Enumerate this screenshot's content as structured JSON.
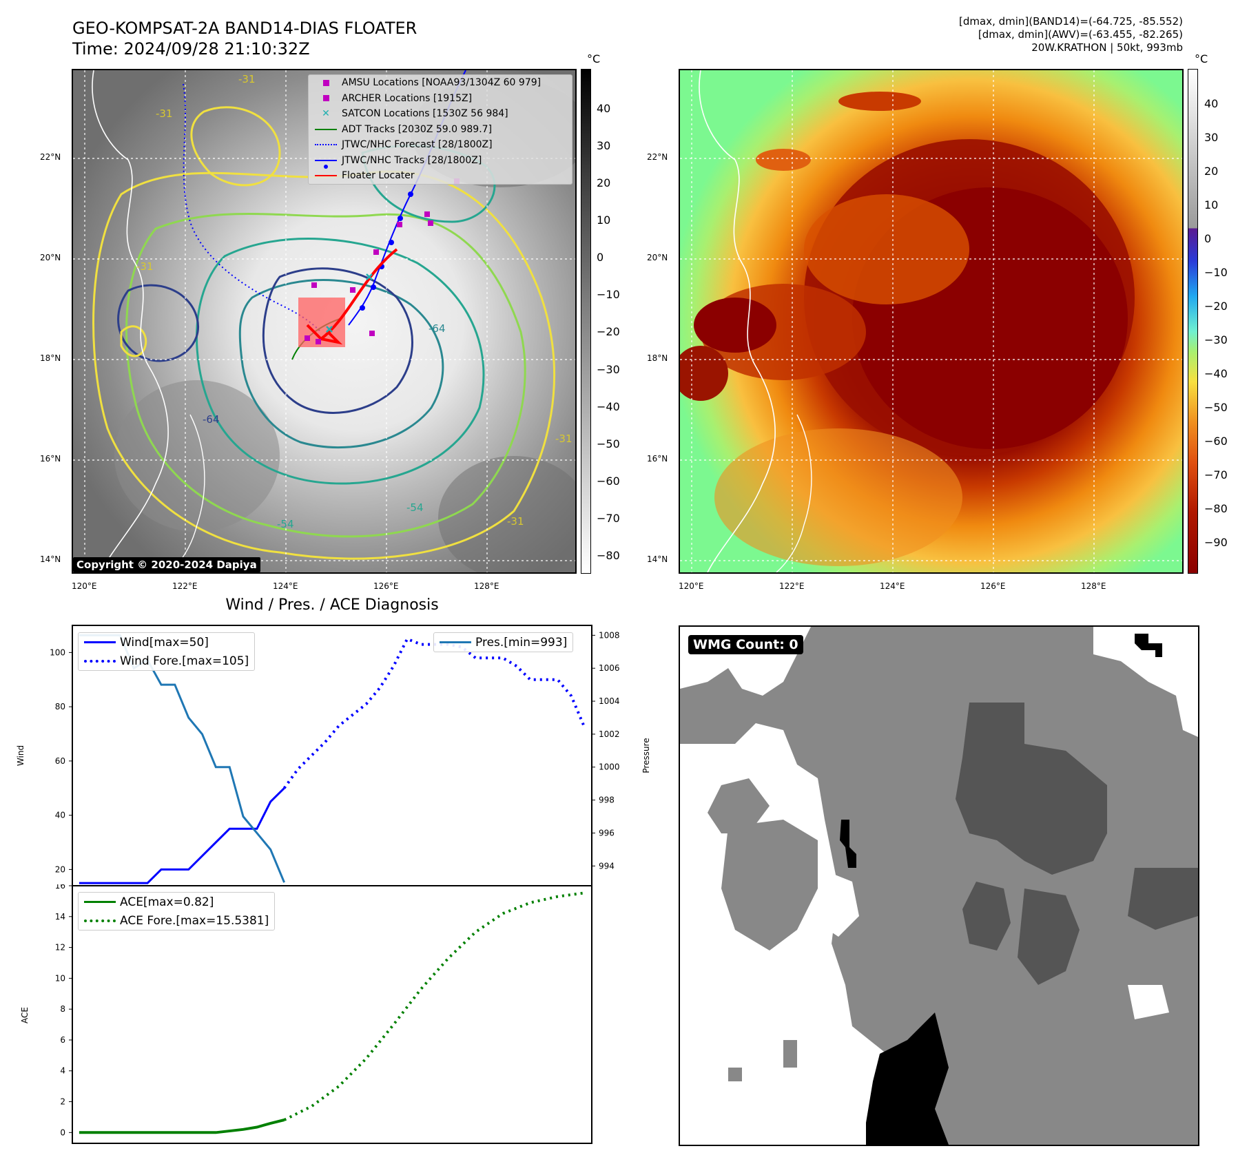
{
  "header": {
    "title_line1": "GEO-KOMPSAT-2A BAND14-DIAS FLOATER",
    "title_line2": "Time: 2024/09/28 21:10:32Z",
    "info_line1": "[dmax, dmin](BAND14)=(-64.725, -85.552)",
    "info_line2": "[dmax, dmin](AWV)=(-63.455, -82.265)",
    "info_line3": "20W.KRATHON | 50kt, 993mb"
  },
  "map": {
    "lat_labels": [
      "22°N",
      "20°N",
      "18°N",
      "16°N",
      "14°N"
    ],
    "lon_labels": [
      "120°E",
      "122°E",
      "124°E",
      "126°E",
      "128°E"
    ],
    "copyright": "Copyright © 2020-2024 Dapiya",
    "contour_labels": [
      "-31",
      "-31",
      "-31",
      "-64",
      "-64",
      "-54",
      "-54",
      "-31",
      "-31"
    ],
    "legend": [
      {
        "label": "AMSU Locations [NOAA93/1304Z 60 979]",
        "color": "#c000c0",
        "marker": "square"
      },
      {
        "label": "ARCHER Locations [1915Z]",
        "color": "#c000c0",
        "marker": "square"
      },
      {
        "label": "SATCON Locations [1530Z 56 984]",
        "color": "#20b0b0",
        "marker": "x"
      },
      {
        "label": "ADT Tracks [2030Z 59.0 989.7]",
        "color": "#008000",
        "marker": "line"
      },
      {
        "label": "JTWC/NHC Forecast [28/1800Z]",
        "color": "#0000ff",
        "marker": "dotted"
      },
      {
        "label": "JTWC/NHC Tracks [28/1800Z]",
        "color": "#0000ff",
        "marker": "line-dot"
      },
      {
        "label": "Floater Locater",
        "color": "#ff0000",
        "marker": "line"
      }
    ]
  },
  "colorbar1": {
    "unit": "°C",
    "ticks": [
      "40",
      "30",
      "20",
      "10",
      "0",
      "−10",
      "−20",
      "−30",
      "−40",
      "−50",
      "−60",
      "−70",
      "−80"
    ]
  },
  "colorbar2": {
    "unit": "°C",
    "ticks": [
      "40",
      "30",
      "20",
      "10",
      "0",
      "−10",
      "−20",
      "−30",
      "−40",
      "−50",
      "−60",
      "−70",
      "−80",
      "−90"
    ]
  },
  "chart_data": [
    {
      "type": "line",
      "title": "Wind / Pres. / ACE Diagnosis",
      "ylabel": "Wind",
      "ylabel_right": "Pressure",
      "ylim": [
        14,
        110
      ],
      "ylim_right": [
        992.8,
        1008.6
      ],
      "yticks": [
        "100",
        "80",
        "60",
        "40",
        "20"
      ],
      "yticks_right": [
        "1008",
        "1006",
        "1004",
        "1002",
        "1000",
        "998",
        "996",
        "994"
      ],
      "series": [
        {
          "name": "Wind[max=50]",
          "color": "#0000ff",
          "style": "solid",
          "axis": "left",
          "x": [
            0,
            2,
            3,
            4,
            5,
            6,
            7,
            8,
            9,
            10,
            11,
            12,
            13,
            14,
            15
          ],
          "values": [
            15,
            15,
            15,
            15,
            15,
            20,
            20,
            20,
            25,
            30,
            35,
            35,
            35,
            45,
            50
          ]
        },
        {
          "name": "Wind Fore.[max=105]",
          "color": "#0000ff",
          "style": "dotted",
          "axis": "left",
          "x": [
            15,
            16,
            17,
            18,
            19,
            20,
            21,
            22,
            23,
            24,
            25,
            26,
            27,
            28,
            29,
            30,
            31,
            32,
            33,
            34,
            35,
            36,
            37
          ],
          "values": [
            50,
            57,
            62,
            67,
            73,
            77,
            81,
            87,
            95,
            105,
            103,
            103,
            103,
            102,
            98,
            98,
            98,
            95,
            90,
            90,
            90,
            84,
            72
          ]
        },
        {
          "name": "Pres.[min=993]",
          "color": "#1f77b4",
          "style": "solid",
          "axis": "right",
          "x": [
            0,
            2,
            3,
            4,
            5,
            6,
            7,
            8,
            9,
            10,
            11,
            12,
            13,
            14,
            15
          ],
          "values": [
            1008,
            1008,
            1008,
            1006,
            1006.5,
            1005,
            1005,
            1003,
            1002,
            1000,
            1000,
            997,
            996,
            995,
            993
          ]
        }
      ],
      "legend_left": [
        "Wind[max=50]",
        "Wind Fore.[max=105]"
      ],
      "legend_right": [
        "Pres.[min=993]"
      ]
    },
    {
      "type": "line",
      "ylabel": "ACE",
      "ylim": [
        -0.7,
        16
      ],
      "yticks": [
        "16",
        "14",
        "12",
        "10",
        "8",
        "6",
        "4",
        "2",
        "0"
      ],
      "series": [
        {
          "name": "ACE[max=0.82]",
          "color": "#008000",
          "style": "solid",
          "x": [
            0,
            5,
            10,
            12,
            13,
            14,
            15
          ],
          "values": [
            0,
            0,
            0,
            0.2,
            0.35,
            0.6,
            0.82
          ]
        },
        {
          "name": "ACE Fore.[max=15.5381]",
          "color": "#008000",
          "style": "dotted",
          "x": [
            15,
            17,
            19,
            21,
            23,
            25,
            27,
            29,
            31,
            33,
            35,
            37
          ],
          "values": [
            0.82,
            1.7,
            3.0,
            4.8,
            7.0,
            9.3,
            11.3,
            13.0,
            14.2,
            14.9,
            15.3,
            15.54
          ]
        }
      ],
      "legend": [
        "ACE[max=0.82]",
        "ACE Fore.[max=15.5381]"
      ]
    }
  ],
  "wmg": {
    "label": "WMG Count: 0"
  }
}
